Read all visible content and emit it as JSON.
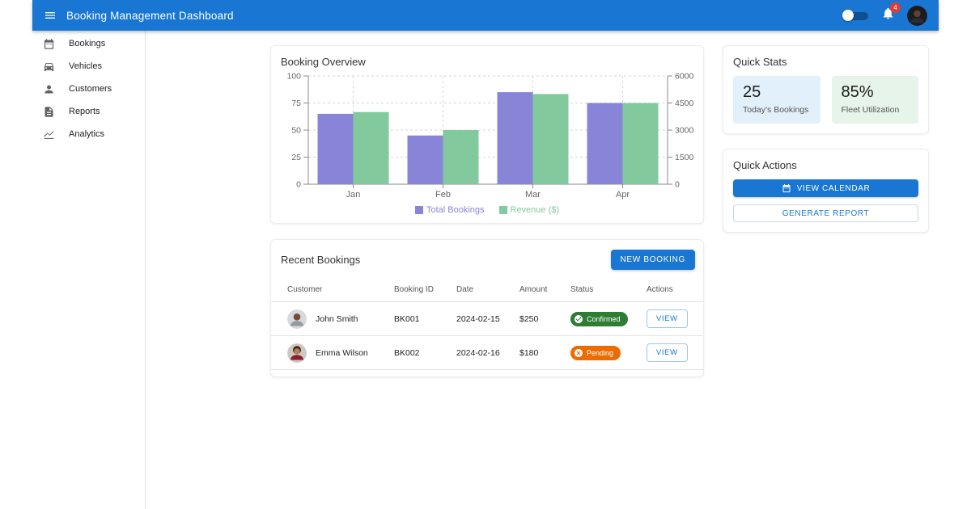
{
  "appbar": {
    "title": "Booking Management Dashboard",
    "notification_count": "4",
    "bar_color": "#1976d2"
  },
  "sidebar": {
    "items": [
      {
        "label": "Bookings",
        "icon": "calendar-icon"
      },
      {
        "label": "Vehicles",
        "icon": "car-icon"
      },
      {
        "label": "Customers",
        "icon": "person-icon"
      },
      {
        "label": "Reports",
        "icon": "report-icon"
      },
      {
        "label": "Analytics",
        "icon": "analytics-icon"
      }
    ]
  },
  "chart_card": {
    "title": "Booking Overview"
  },
  "chart_data": {
    "type": "bar",
    "categories": [
      "Jan",
      "Feb",
      "Mar",
      "Apr"
    ],
    "series": [
      {
        "name": "Total Bookings",
        "axis": "left",
        "color": "#8884d8",
        "values": [
          65,
          45,
          85,
          75
        ]
      },
      {
        "name": "Revenue ($)",
        "axis": "right",
        "color": "#82ca9d",
        "values": [
          4000,
          3000,
          5000,
          4500
        ]
      }
    ],
    "left_axis": {
      "range": [
        0,
        100
      ],
      "ticks": [
        0,
        25,
        50,
        75,
        100
      ]
    },
    "right_axis": {
      "range": [
        0,
        6000
      ],
      "ticks": [
        0,
        1500,
        3000,
        4500,
        6000
      ]
    },
    "grid": "dashed",
    "legend_position": "bottom"
  },
  "bookings_card": {
    "title": "Recent Bookings",
    "new_booking_label": "NEW BOOKING",
    "columns": [
      "Customer",
      "Booking ID",
      "Date",
      "Amount",
      "Status",
      "Actions"
    ],
    "rows": [
      {
        "customer": "John Smith",
        "booking_id": "BK001",
        "date": "2024-02-15",
        "amount": "$250",
        "status": "Confirmed",
        "status_color": "#2e7d32",
        "action": "VIEW"
      },
      {
        "customer": "Emma Wilson",
        "booking_id": "BK002",
        "date": "2024-02-16",
        "amount": "$180",
        "status": "Pending",
        "status_color": "#ed6c02",
        "action": "VIEW"
      }
    ]
  },
  "quick_stats": {
    "title": "Quick Stats",
    "stats": [
      {
        "value": "25",
        "label": "Today's Bookings",
        "bg": "#e1f0fb"
      },
      {
        "value": "85%",
        "label": "Fleet Utilization",
        "bg": "#e7f4e9"
      }
    ]
  },
  "quick_actions": {
    "title": "Quick Actions",
    "buttons": [
      {
        "label": "VIEW CALENDAR",
        "style": "filled"
      },
      {
        "label": "GENERATE REPORT",
        "style": "outlined"
      }
    ]
  }
}
